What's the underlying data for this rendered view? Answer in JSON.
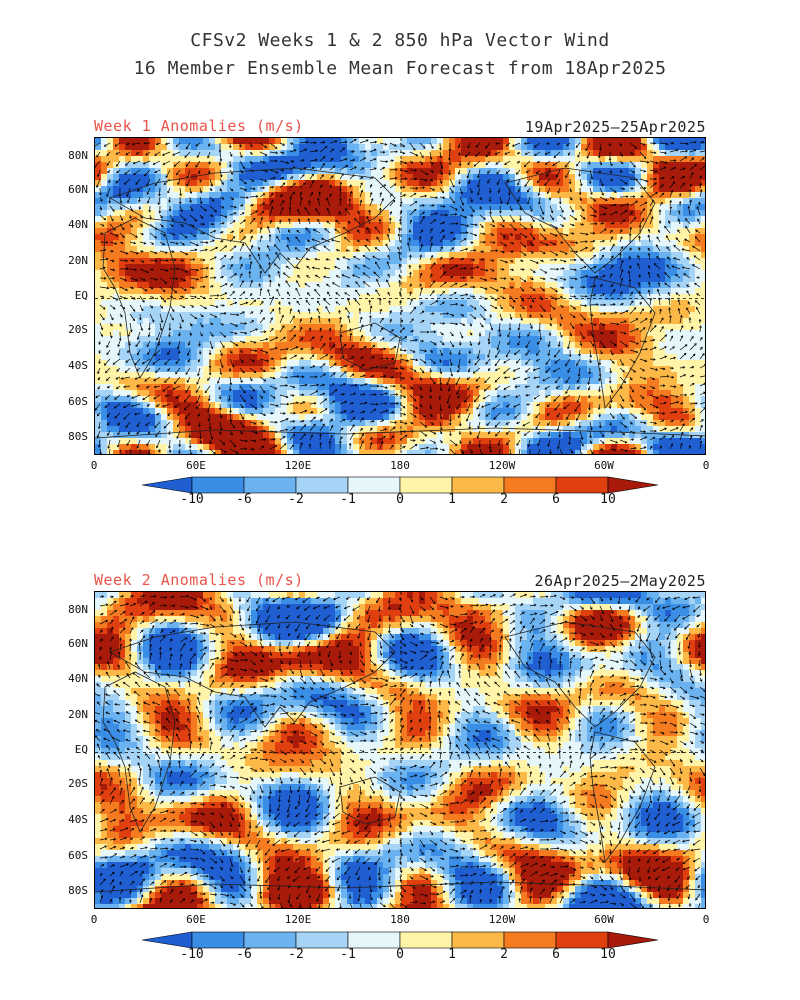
{
  "title_line1": "CFSv2 Weeks 1 & 2 850 hPa Vector Wind",
  "title_line2": "16 Member Ensemble Mean Forecast from 18Apr2025",
  "lat_labels": [
    "80N",
    "60N",
    "40N",
    "20N",
    "EQ",
    "20S",
    "40S",
    "60S",
    "80S"
  ],
  "lon_labels": [
    "0",
    "60E",
    "120E",
    "180",
    "120W",
    "60W",
    "0"
  ],
  "colorbar": {
    "labels": [
      "-10",
      "-6",
      "-2",
      "-1",
      "0",
      "1",
      "2",
      "6",
      "10"
    ],
    "colors": [
      "#1f5fd1",
      "#3a8ee6",
      "#6ab2f0",
      "#a6d4f7",
      "#e6f7fb",
      "#fff4a8",
      "#fcb947",
      "#f47b20",
      "#e04010",
      "#a81a0a"
    ]
  },
  "panels": [
    {
      "label": "Week 1 Anomalies (m/s)",
      "dates": "19Apr2025—25Apr2025"
    },
    {
      "label": "Week 2 Anomalies (m/s)",
      "dates": "26Apr2025—2May2025"
    }
  ]
}
